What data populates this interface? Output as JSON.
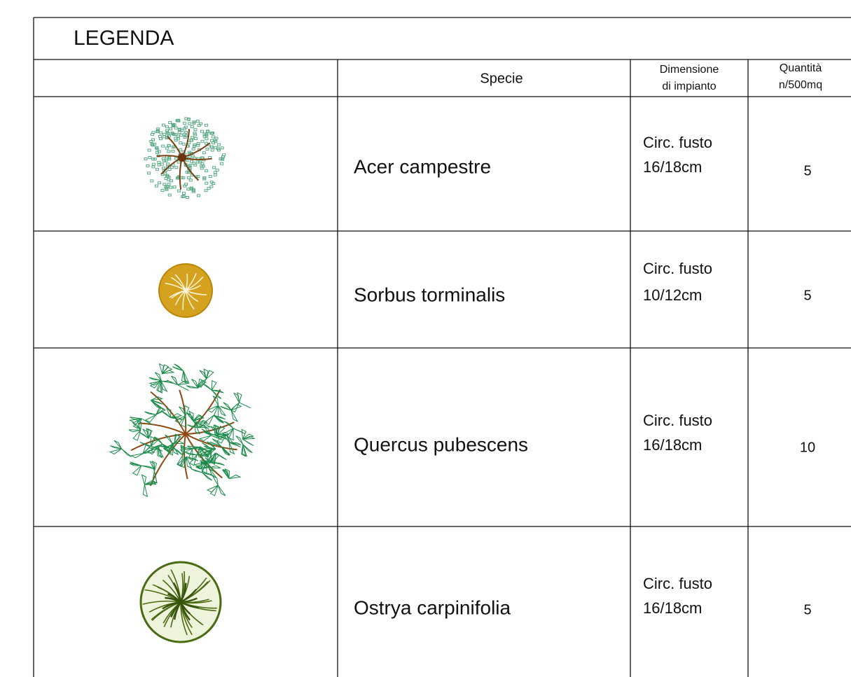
{
  "header": {
    "title": "LEGENDA"
  },
  "table": {
    "columns": [
      [
        "Specie"
      ],
      [
        "Dimensione",
        "di impianto"
      ],
      [
        "Quantità",
        "n/500mq"
      ]
    ],
    "rows": [
      {
        "species": "Acer campestre",
        "size": [
          "Circ. fusto",
          "16/18cm"
        ],
        "quantity": 5
      },
      {
        "species": "Sorbus torminalis",
        "size": [
          "Circ. fusto",
          "10/12cm"
        ],
        "quantity": 5
      },
      {
        "species": "Quercus pubescens",
        "size": [
          "Circ. fusto",
          "16/18cm"
        ],
        "quantity": 10
      },
      {
        "species": "Ostrya carpinifolia",
        "size": [
          "Circ. fusto",
          "16/18cm"
        ],
        "quantity": 5
      }
    ]
  }
}
